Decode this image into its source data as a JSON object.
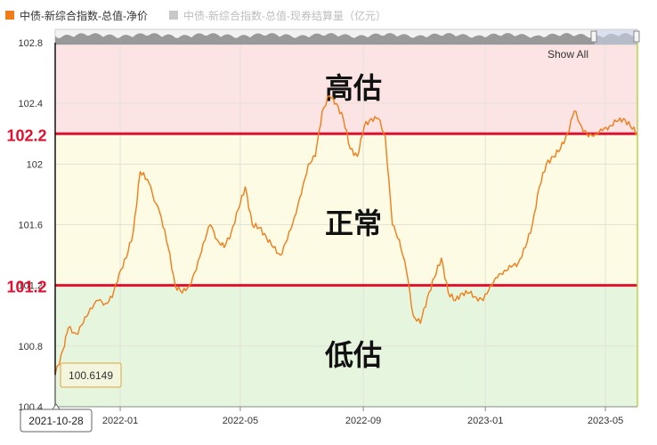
{
  "legend": {
    "series1_label": "中债-新综合指数-总值-净价",
    "series1_color": "#f07d1a",
    "series2_label": "中债-新综合指数-总值-现券结算量（亿元）",
    "series2_color": "#c8c8c8"
  },
  "navigator": {
    "show_all_label": "Show All"
  },
  "zones": [
    {
      "label": "高估",
      "color": "#fde4e4"
    },
    {
      "label": "正常",
      "color": "#fdfbe4"
    },
    {
      "label": "低估",
      "color": "#e6f6de"
    }
  ],
  "threshold_lines": [
    {
      "value": 102.2,
      "label": "102.2",
      "color": "#e0102f"
    },
    {
      "value": 101.2,
      "label": "101.2",
      "color": "#e0102f"
    }
  ],
  "tooltip": {
    "date": "2021-10-28",
    "value": "100.6149"
  },
  "chart_data": {
    "type": "line",
    "series": [
      {
        "name": "中债-新综合指数-总值-净价",
        "x": [
          "2021-10-28",
          "2021-11-05",
          "2021-11-10",
          "2021-11-18",
          "2021-11-25",
          "2021-12-02",
          "2021-12-10",
          "2021-12-17",
          "2021-12-24",
          "2021-12-31",
          "2022-01-07",
          "2022-01-14",
          "2022-01-21",
          "2022-01-28",
          "2022-02-11",
          "2022-02-18",
          "2022-02-25",
          "2022-03-04",
          "2022-03-11",
          "2022-03-18",
          "2022-03-25",
          "2022-04-01",
          "2022-04-08",
          "2022-04-15",
          "2022-04-22",
          "2022-04-29",
          "2022-05-06",
          "2022-05-13",
          "2022-05-20",
          "2022-05-27",
          "2022-06-03",
          "2022-06-10",
          "2022-06-17",
          "2022-06-24",
          "2022-07-01",
          "2022-07-08",
          "2022-07-15",
          "2022-07-22",
          "2022-07-29",
          "2022-08-05",
          "2022-08-12",
          "2022-08-19",
          "2022-08-26",
          "2022-09-02",
          "2022-09-09",
          "2022-09-16",
          "2022-09-23",
          "2022-09-30",
          "2022-10-07",
          "2022-10-14",
          "2022-10-21",
          "2022-10-28",
          "2022-11-04",
          "2022-11-11",
          "2022-11-18",
          "2022-11-25",
          "2022-12-02",
          "2022-12-09",
          "2022-12-16",
          "2022-12-23",
          "2022-12-30",
          "2023-01-06",
          "2023-01-13",
          "2023-01-20",
          "2023-01-27",
          "2023-02-03",
          "2023-02-10",
          "2023-02-17",
          "2023-02-24",
          "2023-03-03",
          "2023-03-10",
          "2023-03-17",
          "2023-03-24",
          "2023-03-31",
          "2023-04-07",
          "2023-04-14",
          "2023-04-21",
          "2023-04-28",
          "2023-05-05",
          "2023-05-12",
          "2023-05-19",
          "2023-05-26",
          "2023-06-02"
        ],
        "values": [
          100.61,
          100.78,
          100.92,
          100.88,
          100.95,
          101.05,
          101.1,
          101.08,
          101.12,
          101.28,
          101.38,
          101.55,
          101.95,
          101.9,
          101.65,
          101.45,
          101.2,
          101.15,
          101.2,
          101.3,
          101.48,
          101.6,
          101.5,
          101.45,
          101.55,
          101.7,
          101.85,
          101.6,
          101.58,
          101.52,
          101.45,
          101.4,
          101.5,
          101.65,
          101.8,
          102.0,
          102.05,
          102.35,
          102.45,
          102.4,
          102.3,
          102.1,
          102.05,
          102.25,
          102.3,
          102.3,
          102.18,
          101.6,
          101.5,
          101.3,
          101.0,
          100.95,
          101.12,
          101.25,
          101.38,
          101.15,
          101.1,
          101.15,
          101.15,
          101.12,
          101.1,
          101.2,
          101.25,
          101.3,
          101.32,
          101.35,
          101.45,
          101.6,
          101.85,
          102.0,
          102.05,
          102.1,
          102.2,
          102.35,
          102.25,
          102.18,
          102.2,
          102.22,
          102.25,
          102.28,
          102.3,
          102.25,
          102.2
        ]
      },
      {
        "name": "中债-新综合指数-总值-现券结算量（亿元）",
        "values": []
      }
    ],
    "xlabel": "",
    "ylabel": "",
    "ylim": [
      100.4,
      102.8
    ],
    "y_ticks": [
      "100.4",
      "100.8",
      "101.2",
      "101.6",
      "102",
      "102.4",
      "102.8"
    ],
    "x_ticks": [
      "2022-01",
      "2022-05",
      "2022-09",
      "2023-01",
      "2023-05"
    ],
    "x_range": [
      "2021-10-28",
      "2023-06-02"
    ],
    "grid": true
  }
}
